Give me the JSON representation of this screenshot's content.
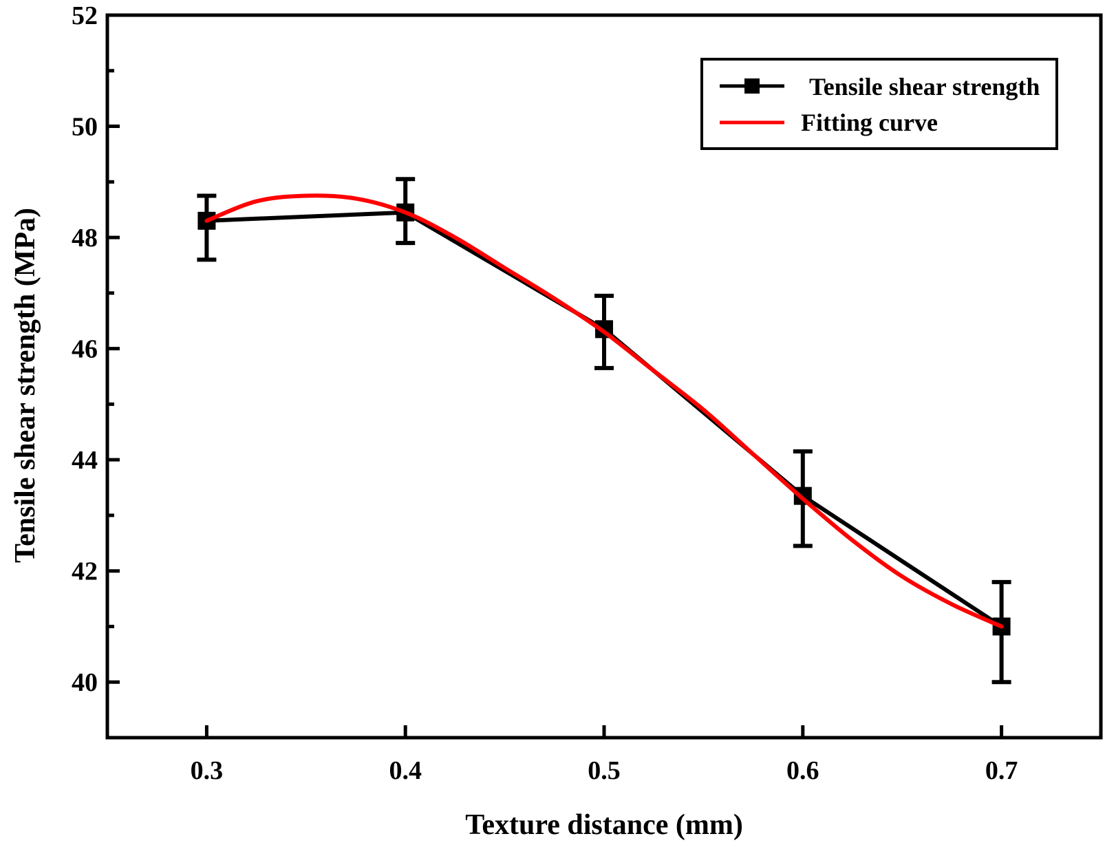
{
  "chart_data": {
    "type": "line",
    "xlabel": "Texture distance (mm)",
    "ylabel": "Tensile shear strength (MPa)",
    "xlim": [
      0.25,
      0.75
    ],
    "ylim": [
      39,
      52
    ],
    "x_ticks": [
      "0.3",
      "0.4",
      "0.5",
      "0.6",
      "0.7"
    ],
    "x_tick_values": [
      0.3,
      0.4,
      0.5,
      0.6,
      0.7
    ],
    "y_ticks": [
      "40",
      "42",
      "44",
      "46",
      "48",
      "50",
      "52"
    ],
    "y_tick_values": [
      40,
      42,
      44,
      46,
      48,
      50,
      52
    ],
    "y_minor_tick_values": [
      41,
      43,
      45,
      47,
      49,
      51
    ],
    "grid": false,
    "legend_position": "top-right",
    "series": [
      {
        "name": "Tensile shear strength",
        "color": "#000000",
        "marker": "square",
        "x": [
          0.3,
          0.4,
          0.5,
          0.6,
          0.7
        ],
        "y": [
          48.3,
          48.45,
          46.35,
          43.35,
          41.0
        ],
        "error_low": [
          47.6,
          47.9,
          45.65,
          42.45,
          40.0
        ],
        "error_high": [
          48.75,
          49.05,
          46.95,
          44.15,
          41.8
        ]
      },
      {
        "name": "Fitting curve",
        "color": "#ff0000",
        "marker": "none",
        "x": [
          0.3,
          0.325,
          0.35,
          0.375,
          0.4,
          0.425,
          0.45,
          0.475,
          0.5,
          0.525,
          0.55,
          0.575,
          0.6,
          0.625,
          0.65,
          0.675,
          0.7
        ],
        "y": [
          48.3,
          48.65,
          48.75,
          48.7,
          48.45,
          48.0,
          47.45,
          46.9,
          46.3,
          45.6,
          44.9,
          44.1,
          43.3,
          42.55,
          41.9,
          41.4,
          41.0
        ]
      }
    ]
  }
}
